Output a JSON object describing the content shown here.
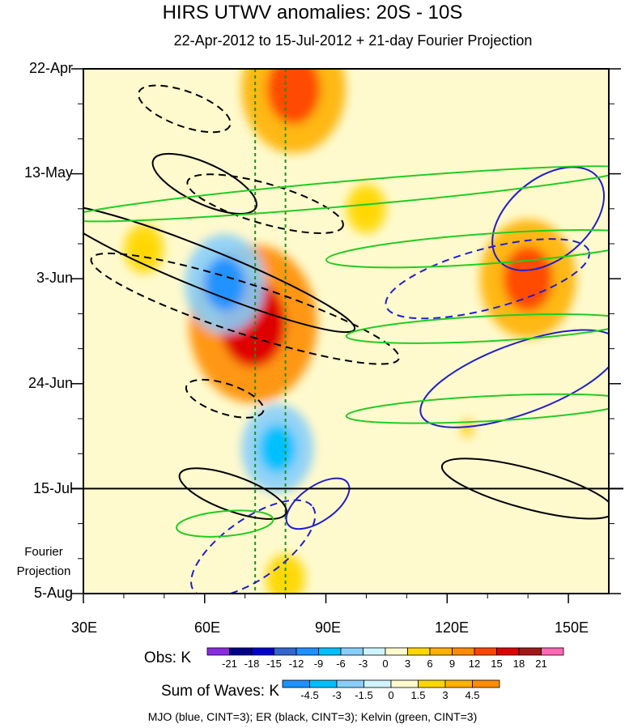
{
  "chart_data": {
    "type": "heatmap",
    "title": "HIRS UTWV anomalies: 20S - 10S",
    "subtitle": "22-Apr-2012 to 15-Jul-2012 + 21-day Fourier Projection",
    "xlabel": "",
    "ylabel": "",
    "x_range": [
      30,
      160
    ],
    "x_ticks": [
      {
        "value": 30,
        "label": "30E"
      },
      {
        "value": 60,
        "label": "60E"
      },
      {
        "value": 90,
        "label": "90E"
      },
      {
        "value": 120,
        "label": "120E"
      },
      {
        "value": 150,
        "label": "150E"
      }
    ],
    "y_range_days": [
      0,
      105
    ],
    "y_ticks": [
      {
        "day": 0,
        "label": "22-Apr"
      },
      {
        "day": 21,
        "label": "13-May"
      },
      {
        "day": 42,
        "label": "3-Jun"
      },
      {
        "day": 63,
        "label": "24-Jun"
      },
      {
        "day": 84,
        "label": "15-Jul"
      },
      {
        "day": 105,
        "label": "5-Aug"
      }
    ],
    "projection_start_day": 84,
    "projection_label": [
      "Fourier",
      "Projection"
    ],
    "reference_lines_lon": [
      72.5,
      80
    ],
    "obs_colorbar": {
      "title": "Obs: K",
      "levels": [
        "-21",
        "-18",
        "-15",
        "-12",
        "-9",
        "-6",
        "-3",
        "0",
        "3",
        "6",
        "9",
        "12",
        "15",
        "18",
        "21"
      ],
      "colors": [
        "#8a2be2",
        "#00008b",
        "#0000cd",
        "#3366cc",
        "#1e90ff",
        "#00bfff",
        "#87cefa",
        "#cff3ff",
        "#fffacd",
        "#ffd700",
        "#ffb000",
        "#ff8c00",
        "#ff4500",
        "#dd0000",
        "#a01818",
        "#ff69b4"
      ]
    },
    "waves_colorbar": {
      "title": "Sum of Waves: K",
      "levels": [
        "-4.5",
        "-3",
        "-1.5",
        "0",
        "1.5",
        "3",
        "4.5"
      ],
      "colors": [
        "#1e90ff",
        "#00bfff",
        "#87cefa",
        "#cff3ff",
        "#fffacd",
        "#ffd700",
        "#ffb000",
        "#ff8c00"
      ]
    },
    "anomaly_features": [
      {
        "lon": 82,
        "day": 4,
        "value": 13
      },
      {
        "lon": 72,
        "day": 51,
        "value": 16
      },
      {
        "lon": 65,
        "day": 43,
        "value": -10
      },
      {
        "lon": 140,
        "day": 42,
        "value": 12
      },
      {
        "lon": 78,
        "day": 76,
        "value": -9
      },
      {
        "lon": 100,
        "day": 28,
        "value": 5
      },
      {
        "lon": 45,
        "day": 36,
        "value": 5
      },
      {
        "lon": 125,
        "day": 72,
        "value": 4
      },
      {
        "lon": 80,
        "day": 102,
        "value": 5
      }
    ],
    "contours": [
      {
        "wave": "MJO",
        "color": "#1f1fcc",
        "dashed": false,
        "lon": 145,
        "day": 30,
        "rx": 16,
        "ry": 8,
        "tilt": 40
      },
      {
        "wave": "MJO",
        "color": "#1f1fcc",
        "dashed": true,
        "lon": 130,
        "day": 42,
        "rx": 26,
        "ry": 6,
        "tilt": 15
      },
      {
        "wave": "MJO",
        "color": "#1f1fcc",
        "dashed": false,
        "lon": 138,
        "day": 62,
        "rx": 26,
        "ry": 7,
        "tilt": 20
      },
      {
        "wave": "MJO",
        "color": "#1f1fcc",
        "dashed": true,
        "lon": 72,
        "day": 96,
        "rx": 18,
        "ry": 6,
        "tilt": 35
      },
      {
        "wave": "MJO",
        "color": "#1f1fcc",
        "dashed": false,
        "lon": 88,
        "day": 87,
        "rx": 9,
        "ry": 3.5,
        "tilt": 35
      },
      {
        "wave": "ER",
        "color": "#000000",
        "dashed": false,
        "lon": 60,
        "day": 23,
        "rx": 14,
        "ry": 4,
        "tilt": -25
      },
      {
        "wave": "ER",
        "color": "#000000",
        "dashed": true,
        "lon": 55,
        "day": 8,
        "rx": 12,
        "ry": 3.5,
        "tilt": -20
      },
      {
        "wave": "ER",
        "color": "#000000",
        "dashed": true,
        "lon": 75,
        "day": 27,
        "rx": 20,
        "ry": 4,
        "tilt": -16
      },
      {
        "wave": "ER",
        "color": "#000000",
        "dashed": false,
        "lon": 60,
        "day": 40,
        "rx": 40,
        "ry": 4,
        "tilt": -22
      },
      {
        "wave": "ER",
        "color": "#000000",
        "dashed": true,
        "lon": 70,
        "day": 48,
        "rx": 40,
        "ry": 5,
        "tilt": -18
      },
      {
        "wave": "ER",
        "color": "#000000",
        "dashed": true,
        "lon": 65,
        "day": 66,
        "rx": 10,
        "ry": 3,
        "tilt": -18
      },
      {
        "wave": "ER",
        "color": "#000000",
        "dashed": false,
        "lon": 67,
        "day": 85,
        "rx": 14,
        "ry": 3.5,
        "tilt": -20
      },
      {
        "wave": "ER",
        "color": "#000000",
        "dashed": false,
        "lon": 140,
        "day": 84,
        "rx": 22,
        "ry": 4,
        "tilt": -15
      },
      {
        "wave": "Kelvin",
        "color": "#22cc22",
        "dashed": false,
        "lon": 95,
        "day": 25,
        "rx": 70,
        "ry": 2.5,
        "tilt": 5
      },
      {
        "wave": "Kelvin",
        "color": "#22cc22",
        "dashed": false,
        "lon": 130,
        "day": 36,
        "rx": 40,
        "ry": 3,
        "tilt": 4
      },
      {
        "wave": "Kelvin",
        "color": "#22cc22",
        "dashed": false,
        "lon": 130,
        "day": 52,
        "rx": 35,
        "ry": 2.5,
        "tilt": 3
      },
      {
        "wave": "Kelvin",
        "color": "#22cc22",
        "dashed": false,
        "lon": 130,
        "day": 68,
        "rx": 35,
        "ry": 2.5,
        "tilt": 3
      },
      {
        "wave": "Kelvin",
        "color": "#22cc22",
        "dashed": false,
        "lon": 65,
        "day": 91,
        "rx": 12,
        "ry": 2.5,
        "tilt": 5
      }
    ],
    "legend_note": "MJO (blue, CINT=3); ER (black, CINT=3); Kelvin (green, CINT=3)"
  }
}
